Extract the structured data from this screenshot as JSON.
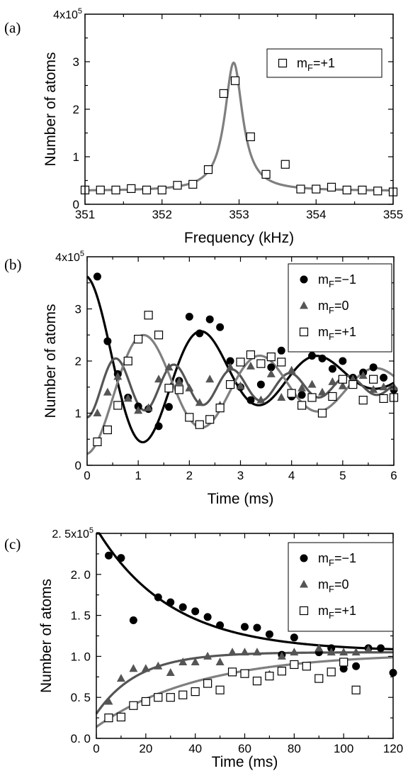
{
  "chart_data": [
    {
      "type": "scatter",
      "panel_label": "(a)",
      "xlabel": "Frequency (kHz)",
      "ylabel": "Number of atoms",
      "y_multiplier": "4x10",
      "y_multiplier_exp": "5",
      "xlim": [
        351,
        355
      ],
      "ylim": [
        0,
        4
      ],
      "xticks": [
        "351",
        "352",
        "353",
        "354",
        "355"
      ],
      "yticks": [
        "0",
        "1",
        "2",
        "3"
      ],
      "legend_position": "top-right",
      "series": [
        {
          "name": "m",
          "sub": "F",
          "suffix": "=+1",
          "marker": "open-square",
          "color": "#000000",
          "x": [
            351.0,
            351.2,
            351.4,
            351.6,
            351.8,
            352.0,
            352.2,
            352.4,
            352.6,
            352.8,
            352.95,
            353.15,
            353.35,
            353.6,
            353.8,
            354.0,
            354.2,
            354.4,
            354.6,
            354.8,
            355.0
          ],
          "y": [
            0.3,
            0.3,
            0.3,
            0.33,
            0.3,
            0.3,
            0.4,
            0.42,
            0.73,
            2.33,
            2.6,
            1.42,
            0.63,
            0.84,
            0.32,
            0.32,
            0.36,
            0.3,
            0.3,
            0.28,
            0.26
          ]
        }
      ],
      "fit_curves": [
        {
          "color": "#7f7f7f",
          "kind": "lorentzian",
          "params": {
            "baseline": 0.28,
            "amplitude": 2.7,
            "center": 352.93,
            "hwhm": 0.14
          }
        }
      ]
    },
    {
      "type": "scatter",
      "panel_label": "(b)",
      "xlabel": "Time (ms)",
      "ylabel": "Number of atoms",
      "y_multiplier": "4x10",
      "y_multiplier_exp": "5",
      "xlim": [
        0,
        6
      ],
      "ylim": [
        0,
        4
      ],
      "xticks": [
        "0",
        "1",
        "2",
        "3",
        "4",
        "5",
        "6"
      ],
      "yticks": [
        "0",
        "1",
        "2",
        "3"
      ],
      "legend_position": "top-right",
      "series": [
        {
          "name": "m",
          "sub": "F",
          "suffix": "=−1",
          "marker": "filled-circle",
          "color": "#000000",
          "x": [
            0.2,
            0.4,
            0.6,
            0.8,
            1.0,
            1.2,
            1.4,
            1.6,
            1.8,
            2.0,
            2.2,
            2.4,
            2.6,
            2.8,
            3.0,
            3.2,
            3.4,
            3.6,
            3.8,
            4.0,
            4.2,
            4.4,
            4.6,
            4.8,
            5.0,
            5.2,
            5.4,
            5.6,
            5.8,
            6.0
          ],
          "y": [
            3.62,
            2.38,
            1.75,
            1.3,
            1.13,
            1.08,
            0.75,
            1.12,
            1.62,
            2.85,
            2.53,
            2.8,
            2.65,
            2.0,
            1.5,
            1.25,
            1.55,
            1.88,
            2.2,
            1.32,
            1.35,
            2.1,
            2.05,
            1.85,
            2.0,
            1.68,
            1.78,
            1.88,
            1.68,
            1.45
          ]
        },
        {
          "name": "m",
          "sub": "F",
          "suffix": "=0",
          "marker": "filled-triangle",
          "color": "#555555",
          "x": [
            0.2,
            0.4,
            0.6,
            0.8,
            1.0,
            1.2,
            1.4,
            1.6,
            1.8,
            2.0,
            2.2,
            2.4,
            2.6,
            2.8,
            3.0,
            3.2,
            3.4,
            3.6,
            3.8,
            4.0,
            4.2,
            4.4,
            4.6,
            4.8,
            5.0,
            5.2,
            5.4,
            5.6,
            5.8,
            6.0
          ],
          "y": [
            1.0,
            1.4,
            1.7,
            1.28,
            1.05,
            1.1,
            1.65,
            1.88,
            1.6,
            1.48,
            1.2,
            1.65,
            1.15,
            1.88,
            1.52,
            1.9,
            1.25,
            1.75,
            1.3,
            1.82,
            1.48,
            1.55,
            1.4,
            1.6,
            1.52,
            1.65,
            1.72,
            1.45,
            1.5,
            1.5
          ]
        },
        {
          "name": "m",
          "sub": "F",
          "suffix": "=+1",
          "marker": "open-square",
          "color": "#000000",
          "x": [
            0.2,
            0.4,
            0.6,
            0.8,
            1.0,
            1.2,
            1.4,
            1.6,
            1.8,
            2.0,
            2.2,
            2.4,
            2.6,
            2.8,
            3.0,
            3.2,
            3.4,
            3.6,
            3.8,
            4.0,
            4.2,
            4.4,
            4.6,
            4.8,
            5.0,
            5.2,
            5.4,
            5.6,
            5.8,
            6.0
          ],
          "y": [
            0.45,
            0.68,
            1.15,
            2.0,
            2.42,
            2.88,
            2.5,
            1.48,
            1.45,
            0.92,
            0.78,
            0.88,
            1.1,
            1.55,
            1.98,
            2.12,
            1.95,
            2.08,
            1.98,
            1.38,
            1.15,
            1.3,
            1.0,
            1.32,
            1.65,
            1.55,
            1.25,
            1.65,
            1.28,
            1.3
          ]
        }
      ],
      "fit_curves": [
        {
          "color": "#000000",
          "kind": "damped-cosine",
          "params": {
            "offset": 1.72,
            "amplitude": 1.9,
            "period": 2.27,
            "tau": 2.8,
            "phase": 0
          }
        },
        {
          "color": "#555555",
          "kind": "damped-cosine",
          "params": {
            "offset": 1.52,
            "amplitude": -0.6,
            "period": 1.135,
            "tau": 4.5,
            "phase": 0
          }
        },
        {
          "color": "#7f7f7f",
          "kind": "damped-cosine",
          "params": {
            "offset": 1.5,
            "amplitude": -1.28,
            "period": 2.27,
            "tau": 4.5,
            "phase": 0
          }
        }
      ]
    },
    {
      "type": "scatter",
      "panel_label": "(c)",
      "xlabel": "Time (ms)",
      "ylabel": "Number of atoms",
      "y_multiplier": "2. 5x10",
      "y_multiplier_exp": "5",
      "xlim": [
        0,
        120
      ],
      "ylim": [
        0,
        2.5
      ],
      "xticks": [
        "0",
        "20",
        "40",
        "60",
        "80",
        "100",
        "120"
      ],
      "yticks": [
        "0. 0",
        "0. 5",
        "1. 0",
        "1. 5",
        "2. 0"
      ],
      "legend_position": "top-right",
      "series": [
        {
          "name": "m",
          "sub": "F",
          "suffix": "=−1",
          "marker": "filled-circle",
          "color": "#000000",
          "x": [
            5,
            10,
            15,
            25,
            30,
            35,
            40,
            45,
            50,
            60,
            65,
            70,
            75,
            80,
            90,
            95,
            100,
            105,
            110,
            115,
            120
          ],
          "y": [
            2.23,
            2.2,
            1.44,
            1.72,
            1.66,
            1.6,
            1.55,
            1.48,
            1.38,
            1.36,
            1.35,
            1.27,
            1.02,
            1.23,
            1.05,
            1.1,
            0.85,
            0.88,
            1.1,
            1.1,
            0.8
          ]
        },
        {
          "name": "m",
          "sub": "F",
          "suffix": "=0",
          "marker": "filled-triangle",
          "color": "#555555",
          "x": [
            5,
            10,
            15,
            20,
            25,
            30,
            35,
            40,
            45,
            50,
            55,
            60,
            65,
            70,
            75,
            80,
            85,
            90,
            95,
            100,
            105,
            110
          ],
          "y": [
            0.45,
            0.73,
            0.85,
            0.85,
            0.88,
            0.8,
            0.93,
            0.93,
            1.0,
            0.93,
            1.05,
            1.05,
            1.05,
            0.78,
            1.0,
            1.05,
            0.88,
            1.1,
            1.05,
            1.05,
            1.05,
            1.08
          ]
        },
        {
          "name": "m",
          "sub": "F",
          "suffix": "=+1",
          "marker": "open-square",
          "color": "#000000",
          "x": [
            5,
            10,
            15,
            20,
            25,
            30,
            35,
            40,
            45,
            50,
            55,
            60,
            65,
            70,
            75,
            80,
            85,
            90,
            95,
            100,
            105
          ],
          "y": [
            0.25,
            0.26,
            0.4,
            0.45,
            0.5,
            0.5,
            0.53,
            0.57,
            0.67,
            0.59,
            0.81,
            0.79,
            0.7,
            0.76,
            0.82,
            0.9,
            0.88,
            0.73,
            0.81,
            0.93,
            0.59
          ]
        }
      ],
      "fit_curves": [
        {
          "color": "#000000",
          "kind": "exp-decay",
          "params": {
            "asymptote": 1.06,
            "amplitude": 1.5,
            "tau": 30,
            "t0": 0
          }
        },
        {
          "color": "#555555",
          "kind": "exp-rise",
          "params": {
            "asymptote": 1.05,
            "amplitude": 0.75,
            "tau": 17,
            "t0": 0
          }
        },
        {
          "color": "#7f7f7f",
          "kind": "exp-rise",
          "params": {
            "asymptote": 1.04,
            "amplitude": 0.9,
            "tau": 42,
            "t0": 0
          }
        }
      ]
    }
  ]
}
